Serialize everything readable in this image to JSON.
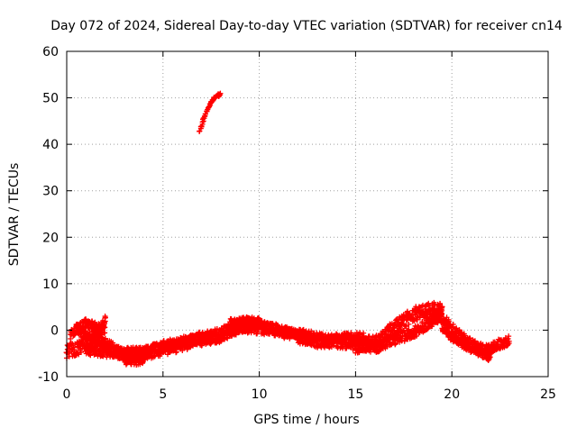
{
  "chart_data": {
    "type": "scatter",
    "title": "Day 072 of 2024, Sidereal Day-to-day VTEC variation (SDTVAR) for receiver cn14",
    "xlabel": "GPS time / hours",
    "ylabel": "SDTVAR / TECUs",
    "xlim": [
      0,
      25
    ],
    "ylim": [
      -10,
      60
    ],
    "xticks": [
      0,
      5,
      10,
      15,
      20,
      25
    ],
    "yticks": [
      -10,
      0,
      10,
      20,
      30,
      40,
      50,
      60
    ],
    "grid": true,
    "marker": "+",
    "series": [
      {
        "name": "sdtvar",
        "color": "#ff0000",
        "bands": [
          {
            "x": [
              0.0,
              0.5,
              1.0,
              1.5,
              2.0
            ],
            "y": [
              -4.5,
              -4.0,
              -3.0,
              -1.0,
              1.0
            ],
            "spread": 1.5
          },
          {
            "x": [
              0.2,
              0.6,
              1.0,
              1.4,
              1.8,
              2.0
            ],
            "y": [
              -1.0,
              0.5,
              1.5,
              1.0,
              0.0,
              2.0
            ],
            "spread": 1.0
          },
          {
            "x": [
              0.5,
              1.0,
              1.5,
              2.0,
              2.5,
              3.0,
              3.5,
              4.0
            ],
            "y": [
              0.5,
              -1.0,
              -2.0,
              -3.0,
              -4.0,
              -5.5,
              -6.5,
              -6.0
            ],
            "spread": 1.2
          },
          {
            "x": [
              1.0,
              2.0,
              3.0,
              4.0,
              5.0,
              6.0,
              7.0,
              8.0
            ],
            "y": [
              -4.0,
              -4.5,
              -5.0,
              -5.0,
              -3.5,
              -2.5,
              -1.5,
              -1.5
            ],
            "spread": 1.3
          },
          {
            "x": [
              3.0,
              4.0,
              5.0,
              6.0,
              7.0,
              8.0,
              9.0,
              10.0
            ],
            "y": [
              -6.0,
              -5.0,
              -4.0,
              -3.0,
              -2.0,
              -1.0,
              1.0,
              1.5
            ],
            "spread": 1.5
          },
          {
            "x": [
              8.0,
              9.0,
              10.0,
              11.0,
              12.0,
              13.0,
              14.0,
              15.0,
              16.0
            ],
            "y": [
              -0.5,
              0.5,
              0.5,
              0.0,
              -1.5,
              -2.5,
              -2.5,
              -3.0,
              -3.5
            ],
            "spread": 1.3
          },
          {
            "x": [
              8.5,
              9.5,
              10.5,
              11.5,
              12.5,
              13.5,
              14.5,
              15.5
            ],
            "y": [
              1.5,
              2.0,
              0.5,
              -0.5,
              -1.0,
              -2.0,
              -1.5,
              -1.5
            ],
            "spread": 1.0
          },
          {
            "x": [
              15.0,
              16.0,
              17.0,
              18.0,
              19.0,
              19.5
            ],
            "y": [
              -3.5,
              -2.5,
              0.5,
              3.5,
              4.5,
              4.5
            ],
            "spread": 1.5
          },
          {
            "x": [
              16.0,
              17.0,
              18.0,
              19.0,
              19.5
            ],
            "y": [
              -4.0,
              -2.0,
              -0.5,
              2.0,
              3.5
            ],
            "spread": 1.2
          },
          {
            "x": [
              19.0,
              19.5,
              20.0,
              20.5,
              21.0,
              21.5,
              22.0,
              22.5,
              23.0
            ],
            "y": [
              3.0,
              2.5,
              0.5,
              -1.5,
              -3.0,
              -4.0,
              -4.0,
              -3.0,
              -2.0
            ],
            "spread": 1.2
          },
          {
            "x": [
              19.5,
              20.0,
              20.5,
              21.0,
              21.5,
              22.0
            ],
            "y": [
              0.5,
              -1.5,
              -3.0,
              -4.0,
              -5.0,
              -6.0
            ],
            "spread": 0.8
          },
          {
            "x": [
              6.9,
              7.2,
              7.5,
              7.8,
              8.0
            ],
            "y": [
              43.0,
              46.5,
              49.0,
              50.5,
              50.7
            ],
            "spread": 0.3
          }
        ]
      }
    ]
  }
}
